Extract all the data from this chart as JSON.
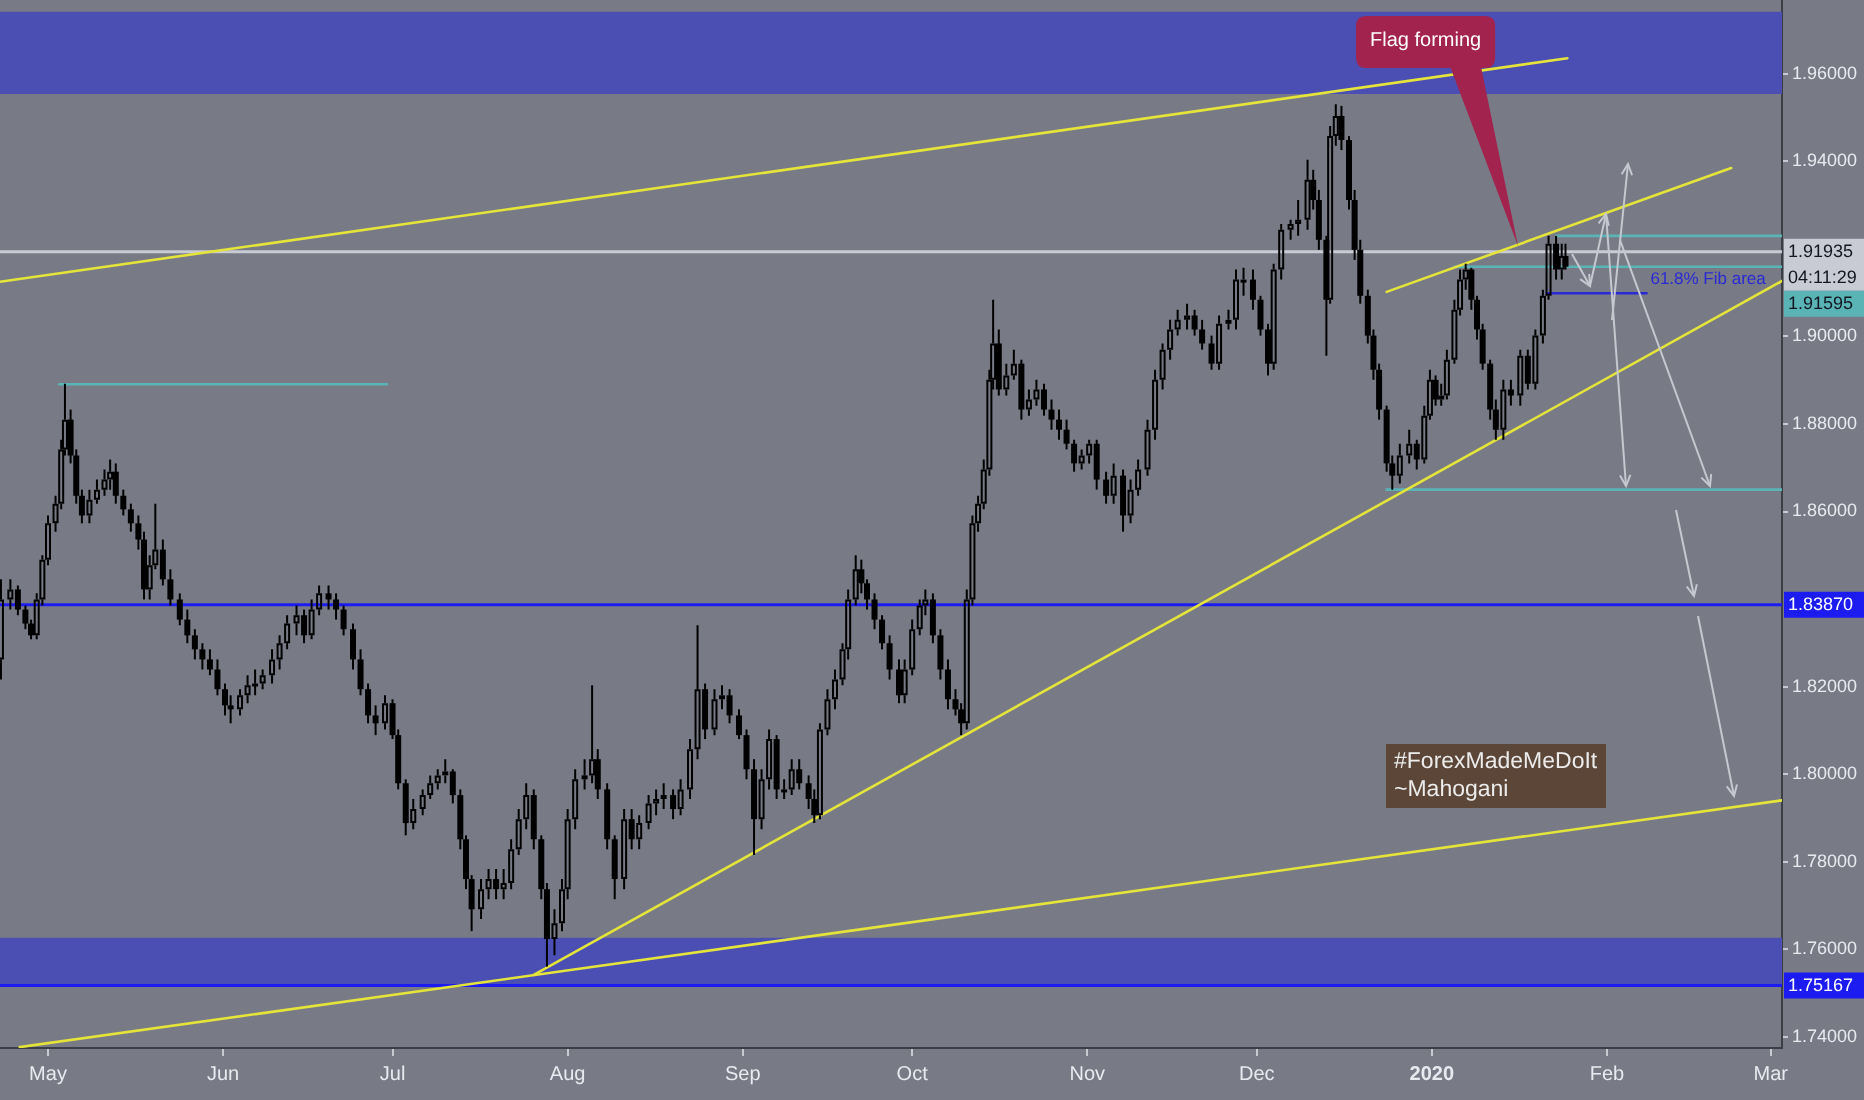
{
  "chart_data": {
    "type": "candlestick",
    "color": "#000000",
    "x": [
      "2019-04-22T16:00",
      "2019-04-24T08:00",
      "2019-04-25T16:00",
      "2019-04-27",
      "2019-04-28",
      "2019-04-29",
      "2019-04-30",
      "2019-05-01",
      "2019-05-02T08:00",
      "2019-05-03T08:00",
      "2019-05-04",
      "2019-05-05",
      "2019-05-06",
      "2019-05-07",
      "2019-05-08T08:00",
      "2019-05-09T16:00",
      "2019-05-11",
      "2019-05-12",
      "2019-05-13",
      "2019-05-14T08:00",
      "2019-05-15T16:00",
      "2019-05-17",
      "2019-05-18",
      "2019-05-19",
      "2019-05-20",
      "2019-05-21T08:00",
      "2019-05-22T16:00",
      "2019-05-24T08:00",
      "2019-05-25T16:00",
      "2019-05-27",
      "2019-05-28T08:00",
      "2019-05-29T16:00",
      "2019-05-31",
      "2019-06-01T08:00",
      "2019-06-02T08:00",
      "2019-06-04",
      "2019-06-05T08:00",
      "2019-06-06T16:00",
      "2019-06-08",
      "2019-06-09T16:00",
      "2019-06-11",
      "2019-06-12T08:00",
      "2019-06-14",
      "2019-06-15T08:00",
      "2019-06-16T16:00",
      "2019-06-18",
      "2019-06-19T16:00",
      "2019-06-21",
      "2019-06-22T08:00",
      "2019-06-24",
      "2019-06-25T08:00",
      "2019-06-26T16:00",
      "2019-06-28",
      "2019-06-29T16:00",
      "2019-07-01",
      "2019-07-02",
      "2019-07-03T08:00",
      "2019-07-04T16:00",
      "2019-07-06T08:00",
      "2019-07-07T16:00",
      "2019-07-09",
      "2019-07-10T08:00",
      "2019-07-11T16:00",
      "2019-07-13",
      "2019-07-14",
      "2019-07-15",
      "2019-07-16T16:00",
      "2019-07-18",
      "2019-07-19T08:00",
      "2019-07-20T16:00",
      "2019-07-22",
      "2019-07-23T08:00",
      "2019-07-24T16:00",
      "2019-07-26",
      "2019-07-27T08:00",
      "2019-07-28T08:00",
      "2019-07-29T16:00",
      "2019-07-31",
      "2019-08-01",
      "2019-08-02T08:00",
      "2019-08-04",
      "2019-08-05T08:00",
      "2019-08-06T08:00",
      "2019-08-08",
      "2019-08-09T08:00",
      "2019-08-11",
      "2019-08-12T08:00",
      "2019-08-13T16:00",
      "2019-08-15T08:00",
      "2019-08-16T16:00",
      "2019-08-18",
      "2019-08-19T16:00",
      "2019-08-21",
      "2019-08-22T16:00",
      "2019-08-24",
      "2019-08-25T08:00",
      "2019-08-27",
      "2019-08-28T08:00",
      "2019-08-29T16:00",
      "2019-08-31T08:00",
      "2019-09-01T16:00",
      "2019-09-03",
      "2019-09-04T08:00",
      "2019-09-05T16:00",
      "2019-09-07",
      "2019-09-08T08:00",
      "2019-09-09T16:00",
      "2019-09-11",
      "2019-09-12T16:00",
      "2019-09-13T16:00",
      "2019-09-14T16:00",
      "2019-09-16",
      "2019-09-17T08:00",
      "2019-09-18T16:00",
      "2019-09-19T16:00",
      "2019-09-21",
      "2019-09-22",
      "2019-09-23",
      "2019-09-24T08:00",
      "2019-09-25T16:00",
      "2019-09-27",
      "2019-09-28T16:00",
      "2019-09-29T16:00",
      "2019-10-01",
      "2019-10-02T08:00",
      "2019-10-03T08:00",
      "2019-10-04T16:00",
      "2019-10-06",
      "2019-10-07T08:00",
      "2019-10-08T16:00",
      "2019-10-09T16:00",
      "2019-10-10T16:00",
      "2019-10-11T16:00",
      "2019-10-12T16:00",
      "2019-10-13T16:00",
      "2019-10-14T16:00",
      "2019-10-15T08:00",
      "2019-10-16T08:00",
      "2019-10-17T16:00",
      "2019-10-19",
      "2019-10-20T08:00",
      "2019-10-21T16:00",
      "2019-10-23",
      "2019-10-24T08:00",
      "2019-10-25T16:00",
      "2019-10-27",
      "2019-10-28T08:00",
      "2019-10-29T16:00",
      "2019-10-31",
      "2019-11-01T08:00",
      "2019-11-02T16:00",
      "2019-11-04T08:00",
      "2019-11-05T16:00",
      "2019-11-07T08:00",
      "2019-11-08T16:00",
      "2019-11-10",
      "2019-11-11T16:00",
      "2019-11-13",
      "2019-11-14T08:00",
      "2019-11-15T16:00",
      "2019-11-17",
      "2019-11-18T16:00",
      "2019-11-20",
      "2019-11-21T08:00",
      "2019-11-23",
      "2019-11-24T08:00",
      "2019-11-26",
      "2019-11-27T08:00",
      "2019-11-28T16:00",
      "2019-11-30T08:00",
      "2019-12-01T16:00",
      "2019-12-03",
      "2019-12-04",
      "2019-12-05T08:00",
      "2019-12-07",
      "2019-12-08T08:00",
      "2019-12-10",
      "2019-12-11",
      "2019-12-12",
      "2019-12-13T08:00",
      "2019-12-14",
      "2019-12-15",
      "2019-12-16",
      "2019-12-17T08:00",
      "2019-12-18T08:00",
      "2019-12-19T08:00",
      "2019-12-20T16:00",
      "2019-12-21T16:00",
      "2019-12-22T16:00",
      "2019-12-24",
      "2019-12-25",
      "2019-12-26T08:00",
      "2019-12-28",
      "2019-12-29T08:00",
      "2019-12-30T16:00",
      "2019-12-31T16:00",
      "2020-01-01T16:00",
      "2020-01-02T16:00",
      "2020-01-03T16:00",
      "2020-01-05",
      "2020-01-06",
      "2020-01-07",
      "2020-01-08",
      "2020-01-09",
      "2020-01-10",
      "2020-01-11T08:00",
      "2020-01-12T08:00",
      "2020-01-13T16:00",
      "2020-01-15",
      "2020-01-16T16:00",
      "2020-01-18",
      "2020-01-19T08:00",
      "2020-01-20T16:00",
      "2020-01-21T16:00",
      "2020-01-23",
      "2020-01-24",
      "2020-01-24T16:00"
    ],
    "ohlc": [
      [
        1.8262,
        1.8445,
        1.8216,
        1.8399
      ],
      [
        1.8399,
        1.8445,
        1.8376,
        1.8422
      ],
      [
        1.8422,
        1.8431,
        1.8363,
        1.8376
      ],
      [
        1.8376,
        1.8385,
        1.8331,
        1.8344
      ],
      [
        1.8344,
        1.8353,
        1.8308,
        1.8317
      ],
      [
        1.8317,
        1.8413,
        1.8308,
        1.8399
      ],
      [
        1.8399,
        1.85,
        1.8385,
        1.849
      ],
      [
        1.849,
        1.8591,
        1.8477,
        1.8573
      ],
      [
        1.8573,
        1.8636,
        1.8554,
        1.8618
      ],
      [
        1.8618,
        1.8764,
        1.8605,
        1.8742
      ],
      [
        1.8742,
        1.8892,
        1.8728,
        1.881
      ],
      [
        1.881,
        1.8833,
        1.871,
        1.8728
      ],
      [
        1.8728,
        1.8742,
        1.8618,
        1.8636
      ],
      [
        1.8636,
        1.865,
        1.8573,
        1.8591
      ],
      [
        1.8591,
        1.865,
        1.8573,
        1.8627
      ],
      [
        1.8627,
        1.8673,
        1.8618,
        1.865
      ],
      [
        1.865,
        1.8696,
        1.8636,
        1.8673
      ],
      [
        1.8673,
        1.8719,
        1.865,
        1.8691
      ],
      [
        1.8691,
        1.871,
        1.8618,
        1.8636
      ],
      [
        1.8636,
        1.865,
        1.8591,
        1.8605
      ],
      [
        1.8605,
        1.8618,
        1.8554,
        1.8573
      ],
      [
        1.8573,
        1.8591,
        1.8513,
        1.8536
      ],
      [
        1.8536,
        1.8554,
        1.8399,
        1.8422
      ],
      [
        1.8422,
        1.85,
        1.8399,
        1.8477
      ],
      [
        1.8477,
        1.8618,
        1.8468,
        1.8513
      ],
      [
        1.8513,
        1.8536,
        1.8431,
        1.8445
      ],
      [
        1.8445,
        1.8468,
        1.8385,
        1.8399
      ],
      [
        1.8399,
        1.8413,
        1.834,
        1.8353
      ],
      [
        1.8353,
        1.8376,
        1.8299,
        1.8317
      ],
      [
        1.8317,
        1.8331,
        1.8262,
        1.8285
      ],
      [
        1.8285,
        1.8299,
        1.8239,
        1.8262
      ],
      [
        1.8262,
        1.8285,
        1.8226,
        1.8239
      ],
      [
        1.8239,
        1.8262,
        1.818,
        1.8194
      ],
      [
        1.8194,
        1.8207,
        1.8134,
        1.8157
      ],
      [
        1.8157,
        1.818,
        1.8116,
        1.8148
      ],
      [
        1.8148,
        1.8194,
        1.8134,
        1.818
      ],
      [
        1.818,
        1.8226,
        1.8162,
        1.8203
      ],
      [
        1.8203,
        1.8239,
        1.818,
        1.8207
      ],
      [
        1.8207,
        1.8239,
        1.8194,
        1.8226
      ],
      [
        1.8226,
        1.8285,
        1.8207,
        1.8262
      ],
      [
        1.8262,
        1.8317,
        1.8239,
        1.8299
      ],
      [
        1.8299,
        1.8363,
        1.8285,
        1.8344
      ],
      [
        1.8344,
        1.8385,
        1.8317,
        1.8363
      ],
      [
        1.8363,
        1.8376,
        1.8299,
        1.8317
      ],
      [
        1.8317,
        1.8399,
        1.8308,
        1.8376
      ],
      [
        1.8376,
        1.8431,
        1.8363,
        1.8413
      ],
      [
        1.8413,
        1.8431,
        1.8376,
        1.8399
      ],
      [
        1.8399,
        1.8413,
        1.8353,
        1.8376
      ],
      [
        1.8376,
        1.8385,
        1.8317,
        1.8331
      ],
      [
        1.8331,
        1.8344,
        1.8239,
        1.8262
      ],
      [
        1.8262,
        1.8285,
        1.818,
        1.8194
      ],
      [
        1.8194,
        1.8207,
        1.8116,
        1.8134
      ],
      [
        1.8134,
        1.8157,
        1.8089,
        1.8116
      ],
      [
        1.8116,
        1.818,
        1.8102,
        1.8162
      ],
      [
        1.8162,
        1.8171,
        1.808,
        1.8089
      ],
      [
        1.8089,
        1.8102,
        1.7965,
        1.7979
      ],
      [
        1.7979,
        1.7988,
        1.786,
        1.7888
      ],
      [
        1.7888,
        1.7943,
        1.7874,
        1.792
      ],
      [
        1.792,
        1.7965,
        1.7906,
        1.7952
      ],
      [
        1.7952,
        1.7997,
        1.7943,
        1.7979
      ],
      [
        1.7979,
        1.8011,
        1.7965,
        1.7997
      ],
      [
        1.7997,
        1.8034,
        1.7979,
        1.8006
      ],
      [
        1.8006,
        1.8011,
        1.7933,
        1.7952
      ],
      [
        1.7952,
        1.7965,
        1.7828,
        1.7851
      ],
      [
        1.7851,
        1.786,
        1.7737,
        1.776
      ],
      [
        1.776,
        1.7769,
        1.7641,
        1.7691
      ],
      [
        1.7691,
        1.776,
        1.7669,
        1.7737
      ],
      [
        1.7737,
        1.7783,
        1.7714,
        1.776
      ],
      [
        1.776,
        1.7783,
        1.7714,
        1.7737
      ],
      [
        1.7737,
        1.7783,
        1.7714,
        1.7751
      ],
      [
        1.7751,
        1.7851,
        1.7737,
        1.7828
      ],
      [
        1.7828,
        1.792,
        1.7815,
        1.7897
      ],
      [
        1.7897,
        1.7979,
        1.7874,
        1.7952
      ],
      [
        1.7952,
        1.7965,
        1.7828,
        1.7851
      ],
      [
        1.7851,
        1.786,
        1.7714,
        1.7737
      ],
      [
        1.7737,
        1.7751,
        1.756,
        1.7623
      ],
      [
        1.7623,
        1.7691,
        1.7586,
        1.7659
      ],
      [
        1.7659,
        1.776,
        1.7641,
        1.7737
      ],
      [
        1.7737,
        1.792,
        1.7714,
        1.7897
      ],
      [
        1.7897,
        1.8011,
        1.7874,
        1.7988
      ],
      [
        1.7988,
        1.8034,
        1.7965,
        1.7997
      ],
      [
        1.7997,
        1.8203,
        1.7979,
        1.8034
      ],
      [
        1.8034,
        1.8057,
        1.7943,
        1.7965
      ],
      [
        1.7965,
        1.7979,
        1.7828,
        1.7851
      ],
      [
        1.7851,
        1.786,
        1.7714,
        1.776
      ],
      [
        1.776,
        1.792,
        1.7737,
        1.7897
      ],
      [
        1.7897,
        1.792,
        1.7828,
        1.7851
      ],
      [
        1.7851,
        1.7906,
        1.7828,
        1.7888
      ],
      [
        1.7888,
        1.7952,
        1.7874,
        1.7933
      ],
      [
        1.7933,
        1.7965,
        1.7906,
        1.7943
      ],
      [
        1.7943,
        1.7979,
        1.792,
        1.7952
      ],
      [
        1.7952,
        1.7965,
        1.7897,
        1.792
      ],
      [
        1.792,
        1.7988,
        1.7906,
        1.7965
      ],
      [
        1.7965,
        1.808,
        1.7943,
        1.8057
      ],
      [
        1.8057,
        1.834,
        1.8034,
        1.8194
      ],
      [
        1.8194,
        1.8207,
        1.808,
        1.8102
      ],
      [
        1.8102,
        1.8194,
        1.8089,
        1.8171
      ],
      [
        1.8171,
        1.8203,
        1.8148,
        1.818
      ],
      [
        1.818,
        1.8194,
        1.8116,
        1.8134
      ],
      [
        1.8134,
        1.8148,
        1.808,
        1.8089
      ],
      [
        1.8089,
        1.8102,
        1.7988,
        1.8011
      ],
      [
        1.8011,
        1.8034,
        1.7815,
        1.7897
      ],
      [
        1.7897,
        1.8011,
        1.7874,
        1.7988
      ],
      [
        1.7988,
        1.8102,
        1.7965,
        1.808
      ],
      [
        1.808,
        1.8089,
        1.7943,
        1.7965
      ],
      [
        1.7965,
        1.7988,
        1.7943,
        1.7965
      ],
      [
        1.7965,
        1.8034,
        1.7952,
        1.8011
      ],
      [
        1.8011,
        1.8034,
        1.7965,
        1.7979
      ],
      [
        1.7979,
        1.7997,
        1.792,
        1.7943
      ],
      [
        1.7943,
        1.7965,
        1.7888,
        1.7906
      ],
      [
        1.7906,
        1.8116,
        1.7897,
        1.8102
      ],
      [
        1.8102,
        1.8194,
        1.8089,
        1.8171
      ],
      [
        1.8171,
        1.8239,
        1.8148,
        1.8216
      ],
      [
        1.8216,
        1.8299,
        1.8203,
        1.8285
      ],
      [
        1.8285,
        1.8422,
        1.8262,
        1.8399
      ],
      [
        1.8399,
        1.85,
        1.8385,
        1.8468
      ],
      [
        1.8468,
        1.849,
        1.8413,
        1.8436
      ],
      [
        1.8436,
        1.8445,
        1.8376,
        1.8399
      ],
      [
        1.8399,
        1.8413,
        1.8331,
        1.8353
      ],
      [
        1.8353,
        1.8363,
        1.8285,
        1.8299
      ],
      [
        1.8299,
        1.8317,
        1.8216,
        1.8239
      ],
      [
        1.8239,
        1.8262,
        1.8162,
        1.818
      ],
      [
        1.818,
        1.8262,
        1.8162,
        1.8239
      ],
      [
        1.8239,
        1.8353,
        1.8226,
        1.8331
      ],
      [
        1.8331,
        1.8399,
        1.8317,
        1.8385
      ],
      [
        1.8385,
        1.8422,
        1.8363,
        1.8399
      ],
      [
        1.8399,
        1.8413,
        1.8299,
        1.8317
      ],
      [
        1.8317,
        1.8331,
        1.8216,
        1.8239
      ],
      [
        1.8239,
        1.8262,
        1.8148,
        1.8171
      ],
      [
        1.8171,
        1.8194,
        1.8134,
        1.8148
      ],
      [
        1.8148,
        1.8162,
        1.8089,
        1.8116
      ],
      [
        1.8116,
        1.8422,
        1.8102,
        1.8399
      ],
      [
        1.8399,
        1.8591,
        1.8385,
        1.8573
      ],
      [
        1.8573,
        1.8636,
        1.8554,
        1.8618
      ],
      [
        1.8618,
        1.8719,
        1.8605,
        1.8696
      ],
      [
        1.8696,
        1.8924,
        1.8682,
        1.8901
      ],
      [
        1.8901,
        1.9084,
        1.8879,
        1.8984
      ],
      [
        1.8984,
        1.9016,
        1.8865,
        1.8879
      ],
      [
        1.8879,
        1.8938,
        1.8865,
        1.8911
      ],
      [
        1.8911,
        1.897,
        1.8901,
        1.8938
      ],
      [
        1.8938,
        1.8947,
        1.881,
        1.8833
      ],
      [
        1.8833,
        1.8879,
        1.8819,
        1.8856
      ],
      [
        1.8856,
        1.8901,
        1.8842,
        1.8879
      ],
      [
        1.8879,
        1.8892,
        1.8819,
        1.8833
      ],
      [
        1.8833,
        1.8856,
        1.8787,
        1.881
      ],
      [
        1.881,
        1.8833,
        1.8764,
        1.8787
      ],
      [
        1.8787,
        1.881,
        1.8742,
        1.8755
      ],
      [
        1.8755,
        1.8764,
        1.8691,
        1.871
      ],
      [
        1.871,
        1.8742,
        1.8696,
        1.8728
      ],
      [
        1.8728,
        1.8764,
        1.871,
        1.8755
      ],
      [
        1.8755,
        1.8764,
        1.865,
        1.8673
      ],
      [
        1.8673,
        1.8691,
        1.8618,
        1.8636
      ],
      [
        1.8636,
        1.871,
        1.8618,
        1.8682
      ],
      [
        1.8682,
        1.8696,
        1.8554,
        1.8591
      ],
      [
        1.8591,
        1.8673,
        1.8573,
        1.865
      ],
      [
        1.865,
        1.8719,
        1.8636,
        1.8696
      ],
      [
        1.8696,
        1.881,
        1.8682,
        1.8787
      ],
      [
        1.8787,
        1.8924,
        1.8764,
        1.8901
      ],
      [
        1.8901,
        1.8984,
        1.8879,
        1.897
      ],
      [
        1.897,
        1.9038,
        1.8947,
        1.9016
      ],
      [
        1.9016,
        1.9061,
        1.9002,
        1.9038
      ],
      [
        1.9038,
        1.9075,
        1.9016,
        1.9048
      ],
      [
        1.9048,
        1.9061,
        1.9002,
        1.9016
      ],
      [
        1.9016,
        1.9038,
        1.897,
        1.8984
      ],
      [
        1.8984,
        1.9002,
        1.8924,
        1.8938
      ],
      [
        1.8938,
        1.9048,
        1.8924,
        1.9029
      ],
      [
        1.9029,
        1.9061,
        1.9016,
        1.9038
      ],
      [
        1.9038,
        1.9153,
        1.9016,
        1.913
      ],
      [
        1.913,
        1.9157,
        1.9093,
        1.913
      ],
      [
        1.913,
        1.9153,
        1.9061,
        1.9084
      ],
      [
        1.9084,
        1.9093,
        1.9002,
        1.9016
      ],
      [
        1.9016,
        1.9029,
        1.8911,
        1.8938
      ],
      [
        1.8938,
        1.9166,
        1.8924,
        1.9153
      ],
      [
        1.9153,
        1.9257,
        1.913,
        1.9244
      ],
      [
        1.9244,
        1.9267,
        1.9221,
        1.9257
      ],
      [
        1.9257,
        1.9312,
        1.923,
        1.9267
      ],
      [
        1.9267,
        1.9404,
        1.9244,
        1.9358
      ],
      [
        1.9358,
        1.9381,
        1.929,
        1.9312
      ],
      [
        1.9312,
        1.9335,
        1.9198,
        1.9221
      ],
      [
        1.9221,
        1.923,
        1.8956,
        1.9084
      ],
      [
        1.9084,
        1.9481,
        1.9075,
        1.9458
      ],
      [
        1.9458,
        1.9531,
        1.9436,
        1.9504
      ],
      [
        1.9504,
        1.9527,
        1.9426,
        1.9449
      ],
      [
        1.9449,
        1.9458,
        1.929,
        1.9312
      ],
      [
        1.9312,
        1.9335,
        1.9175,
        1.9198
      ],
      [
        1.9198,
        1.9221,
        1.9075,
        1.9093
      ],
      [
        1.9093,
        1.9107,
        1.8984,
        1.9002
      ],
      [
        1.9002,
        1.9016,
        1.8901,
        1.8924
      ],
      [
        1.8924,
        1.8938,
        1.881,
        1.8833
      ],
      [
        1.8833,
        1.8842,
        1.8691,
        1.871
      ],
      [
        1.871,
        1.8728,
        1.865,
        1.8682
      ],
      [
        1.8682,
        1.8755,
        1.8664,
        1.8728
      ],
      [
        1.8728,
        1.8787,
        1.871,
        1.8755
      ],
      [
        1.8755,
        1.8764,
        1.8696,
        1.8719
      ],
      [
        1.8719,
        1.8842,
        1.871,
        1.8819
      ],
      [
        1.8819,
        1.8924,
        1.881,
        1.8901
      ],
      [
        1.8901,
        1.8911,
        1.8842,
        1.8856
      ],
      [
        1.8856,
        1.8892,
        1.8842,
        1.8865
      ],
      [
        1.8865,
        1.897,
        1.8856,
        1.8947
      ],
      [
        1.8947,
        1.9084,
        1.8938,
        1.9061
      ],
      [
        1.9061,
        1.9153,
        1.9048,
        1.913
      ],
      [
        1.913,
        1.9166,
        1.9107,
        1.9153
      ],
      [
        1.9153,
        1.9157,
        1.9061,
        1.9084
      ],
      [
        1.9084,
        1.9093,
        1.8993,
        1.9016
      ],
      [
        1.9016,
        1.9029,
        1.8924,
        1.8938
      ],
      [
        1.8938,
        1.8947,
        1.881,
        1.8833
      ],
      [
        1.8833,
        1.8856,
        1.8764,
        1.8787
      ],
      [
        1.8787,
        1.8901,
        1.8764,
        1.8879
      ],
      [
        1.8879,
        1.8901,
        1.8842,
        1.8865
      ],
      [
        1.8865,
        1.897,
        1.8842,
        1.8956
      ],
      [
        1.8956,
        1.897,
        1.8879,
        1.8892
      ],
      [
        1.8892,
        1.9016,
        1.8879,
        1.9002
      ],
      [
        1.9002,
        1.9107,
        1.8984,
        1.9093
      ],
      [
        1.9093,
        1.923,
        1.9084,
        1.9212
      ],
      [
        1.9212,
        1.923,
        1.913,
        1.9153
      ],
      [
        1.9153,
        1.9212,
        1.913,
        1.9184
      ],
      [
        1.9184,
        1.9212,
        1.9153,
        1.91595
      ]
    ],
    "series": [
      {
        "type": "line",
        "color": "#e4e43a",
        "x": [
          "2019-04-22T12:00",
          "2020-01-25"
        ],
        "values": [
          1.9125,
          1.9636
        ]
      },
      {
        "type": "line",
        "color": "#e4e43a",
        "x": [
          "2019-04-26",
          "2020-03-03"
        ],
        "values": [
          1.7376,
          1.794
        ]
      },
      {
        "type": "line",
        "color": "#e4e43a",
        "x": [
          "2019-07-26",
          "2020-03-03"
        ],
        "values": [
          1.7541,
          1.9127
        ]
      },
      {
        "type": "line",
        "color": "#e4e43a",
        "x": [
          "2019-12-24",
          "2020-02-23"
        ],
        "values": [
          1.9102,
          1.9385
        ]
      },
      {
        "type": "line",
        "color": "#5ab3b5",
        "x": [
          "2019-05-03",
          "2019-06-30"
        ],
        "values": [
          1.8891,
          1.8891
        ]
      },
      {
        "type": "line",
        "color": "#5ab3b5",
        "x": [
          "2020-01-23",
          "2020-03-03"
        ],
        "values": [
          1.923,
          1.923
        ]
      },
      {
        "type": "line",
        "color": "#5ab3b5",
        "x": [
          "2020-01-05",
          "2020-03-03"
        ],
        "values": [
          1.91595,
          1.91595
        ]
      },
      {
        "type": "line",
        "color": "#5ab3b5",
        "x": [
          "2019-12-24",
          "2020-03-03"
        ],
        "values": [
          1.865,
          1.865
        ]
      },
      {
        "type": "line",
        "name": "61.8% Fib area",
        "color": "#2a2ad2",
        "x": [
          "2020-01-21T08:00",
          "2020-02-08"
        ],
        "values": [
          1.9099,
          1.9099
        ]
      }
    ],
    "xlim": [
      "2019-04-22T12:00",
      "2020-03-03"
    ],
    "xticks": [
      {
        "value": "2019-05-01",
        "label": "May"
      },
      {
        "value": "2019-06-01",
        "label": "Jun"
      },
      {
        "value": "2019-07-01",
        "label": "Jul"
      },
      {
        "value": "2019-08-01",
        "label": "Aug"
      },
      {
        "value": "2019-09-01",
        "label": "Sep"
      },
      {
        "value": "2019-10-01",
        "label": "Oct"
      },
      {
        "value": "2019-11-01",
        "label": "Nov"
      },
      {
        "value": "2019-12-01",
        "label": "Dec"
      },
      {
        "value": "2020-01-01",
        "label": "2020"
      },
      {
        "value": "2020-02-01",
        "label": "Feb"
      },
      {
        "value": "2020-03-01",
        "label": "Mar"
      }
    ],
    "ylim": [
      1.7374,
      1.9769
    ],
    "yticks": [
      {
        "value": 1.74,
        "label": "1.74000"
      },
      {
        "value": 1.76,
        "label": "1.76000"
      },
      {
        "value": 1.78,
        "label": "1.78000"
      },
      {
        "value": 1.8,
        "label": "1.80000"
      },
      {
        "value": 1.82,
        "label": "1.82000"
      },
      {
        "value": 1.86,
        "label": "1.86000"
      },
      {
        "value": 1.88,
        "label": "1.88000"
      },
      {
        "value": 1.9,
        "label": "1.90000"
      },
      {
        "value": 1.94,
        "label": "1.94000"
      },
      {
        "value": 1.96,
        "label": "1.96000"
      }
    ],
    "grid": false,
    "legend": false,
    "marker": "none",
    "line_style": "solid",
    "bands": [
      {
        "axis": "y",
        "from": 1.9554,
        "to": 1.9742,
        "color": "#4b4fb3"
      },
      {
        "axis": "y",
        "from": 1.75167,
        "to": 1.7626,
        "color": "#4b4fb3"
      }
    ],
    "ref_lines": [
      {
        "axis": "y",
        "value": 1.91935,
        "label": "1.91935\n04:11:29",
        "color": "#c8cbd3"
      },
      {
        "axis": "y",
        "value": 1.8387,
        "label": "1.83870",
        "color": "#1c1cf0"
      },
      {
        "axis": "y",
        "value": 1.75167,
        "label": "1.75167",
        "color": "#1c1cf0"
      }
    ],
    "annotations": [
      "Flag forming",
      {
        "text": "1.91595",
        "x": "2020-03-03",
        "y": 1.91595
      },
      "#ForexMadeMeDoIt\n~Mahogani"
    ]
  }
}
